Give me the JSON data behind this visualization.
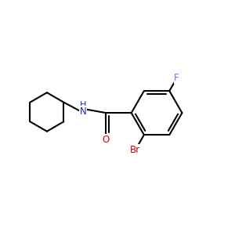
{
  "background_color": "#ffffff",
  "atom_colors": {
    "C": "#000000",
    "H": "#000000",
    "N": "#2222cc",
    "O": "#cc0000",
    "F": "#4488ff",
    "Br": "#cc0000"
  },
  "bond_color": "#000000",
  "bond_width": 1.5,
  "figsize": [
    3.0,
    3.0
  ],
  "dpi": 100,
  "xlim": [
    -2.5,
    2.5
  ],
  "ylim": [
    -2.2,
    2.2
  ]
}
